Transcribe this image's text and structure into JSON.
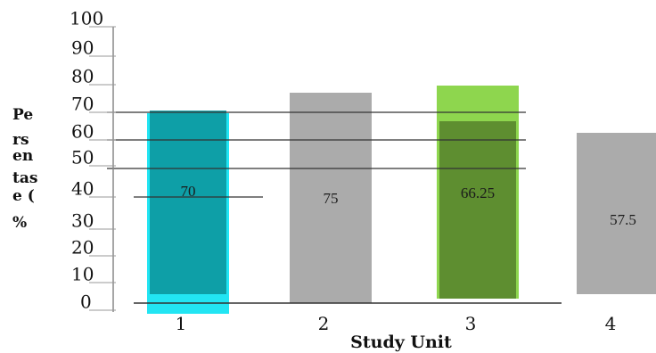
{
  "chart_data": {
    "type": "bar",
    "categories": [
      "1",
      "2",
      "3",
      "4"
    ],
    "values": [
      70,
      75,
      66.25,
      57.5
    ],
    "data_labels": [
      "70",
      "75",
      "66.25",
      "57.5"
    ],
    "bar_colors": [
      "#0e9ba2",
      "#a6a6a6",
      "#5c8a2e",
      "#a6a6a6"
    ],
    "highlight_colors": [
      "#22e5f3",
      null,
      "#8ed64e",
      null
    ],
    "xlabel": "Study Unit",
    "ylabel_lines": [
      "Pe",
      "rs",
      "en",
      "tas",
      "e (",
      "%"
    ],
    "yticks": [
      "0",
      "10",
      "20",
      "30",
      "40",
      "50",
      "60",
      "70",
      "80",
      "90",
      "100"
    ],
    "ylim": [
      0,
      100
    ],
    "grid": true
  }
}
